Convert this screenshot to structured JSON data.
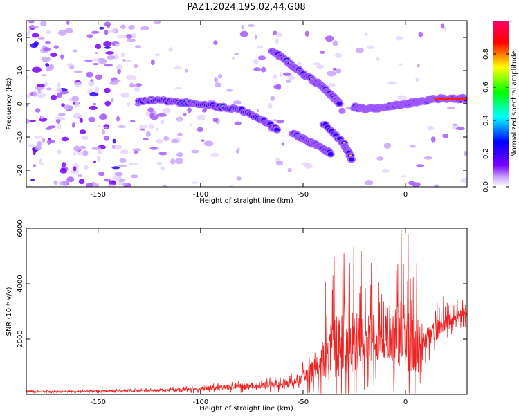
{
  "title": "PAZ1.2024.195.02.44.G08",
  "chart_data": [
    {
      "type": "heatmap",
      "xlabel": "Height of straight line (km)",
      "ylabel": "Frequency (Hz)",
      "xlim": [
        -185,
        30
      ],
      "ylim": [
        -25,
        25
      ],
      "xticks": [
        -150,
        -100,
        -50,
        0
      ],
      "yticks": [
        -20,
        -10,
        0,
        10,
        20
      ],
      "colorbar": {
        "label": "Normalized spectral amplitude",
        "range": [
          0,
          1
        ],
        "ticks": [
          0.0,
          0.2,
          0.4,
          0.6,
          0.8
        ],
        "colors": [
          "#ffffff",
          "#7a00ff",
          "#0000ff",
          "#00ffff",
          "#00ff00",
          "#ffff00",
          "#ff0000",
          "#ff0066"
        ]
      },
      "ridges": [
        {
          "x": [
            -130,
            -120,
            -110,
            -100,
            -90,
            -80,
            -70,
            -62
          ],
          "y": [
            1,
            1,
            0.5,
            0,
            -1,
            -2,
            -5,
            -8
          ]
        },
        {
          "x": [
            -65,
            -58,
            -52,
            -45,
            -40,
            -35,
            -32
          ],
          "y": [
            16,
            13,
            10,
            7,
            5,
            2,
            0
          ]
        },
        {
          "x": [
            -55,
            -48,
            -42,
            -36
          ],
          "y": [
            -9,
            -11,
            -13,
            -15
          ]
        },
        {
          "x": [
            -40,
            -30,
            -26
          ],
          "y": [
            -6,
            -12,
            -17
          ]
        },
        {
          "x": [
            -25,
            -20,
            -15,
            -10,
            -5,
            0,
            5,
            10,
            15,
            20,
            25,
            30
          ],
          "y": [
            -1,
            -1.5,
            -1.5,
            -1,
            -0.5,
            0,
            0.5,
            1,
            1.5,
            1.5,
            1.5,
            1.5
          ]
        }
      ]
    },
    {
      "type": "line",
      "xlabel": "Height of straight line (km)",
      "ylabel": "SNR (10 * v/v)",
      "xlim": [
        -185,
        30
      ],
      "ylim": [
        0,
        6000
      ],
      "xticks": [
        -150,
        -100,
        -50,
        0
      ],
      "yticks": [
        2000,
        4000,
        6000
      ],
      "series_color": "#ee2222",
      "envelope": {
        "x": [
          -185,
          -150,
          -120,
          -100,
          -80,
          -60,
          -52,
          -45,
          -38,
          -32,
          -26,
          -20,
          -15,
          -10,
          -5,
          -2,
          2,
          5,
          10,
          15,
          20,
          25,
          30
        ],
        "base": [
          100,
          120,
          150,
          200,
          300,
          350,
          500,
          900,
          1400,
          1800,
          1800,
          2000,
          2100,
          2100,
          2200,
          2300,
          1800,
          1700,
          2000,
          2300,
          2600,
          2800,
          2900
        ],
        "amp": [
          60,
          70,
          100,
          150,
          250,
          300,
          400,
          1200,
          2000,
          2800,
          2600,
          2000,
          1900,
          1900,
          2300,
          3000,
          2600,
          2400,
          900,
          800,
          700,
          600,
          500
        ]
      }
    }
  ]
}
